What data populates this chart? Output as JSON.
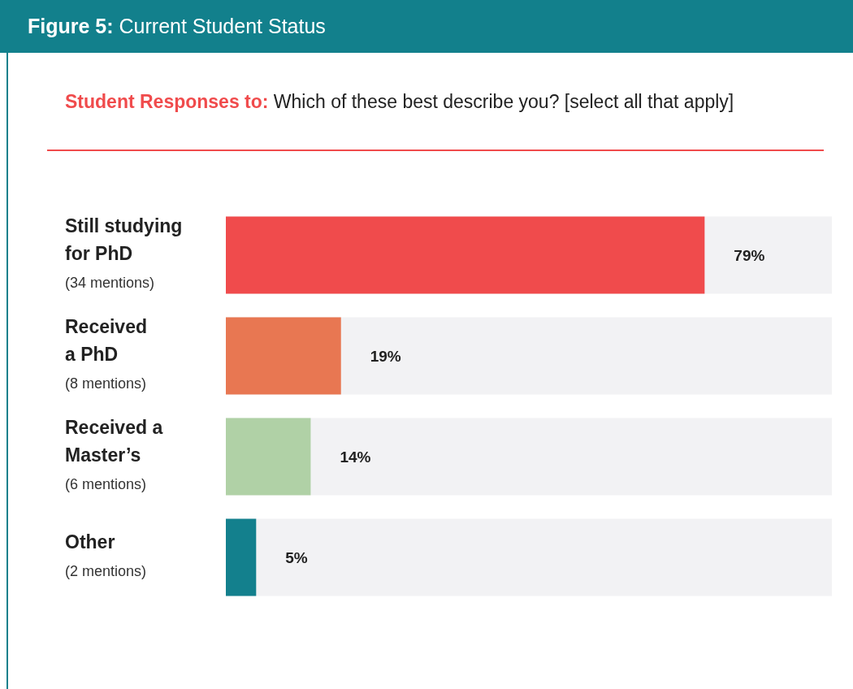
{
  "chart_data": {
    "type": "bar",
    "orientation": "horizontal",
    "title": "Figure 5: Current Student Status",
    "subtitle": "Student Responses to: Which of these best describe you? [select all that apply]",
    "categories": [
      "Still studying\nfor PhD\n(34 mentions)",
      "Received\na PhD\n(8 mentions)",
      "Received a\nMaster’s\n(6 mentions)",
      "Other\n(2 mentions)"
    ],
    "values": [
      79,
      19,
      14,
      5
    ],
    "colors": [
      "#f04b4c",
      "#e87752",
      "#b0d1a6",
      "#13808d"
    ],
    "value_labels": [
      "79%",
      "19%",
      "14%",
      "5%"
    ],
    "xlim": [
      0,
      100
    ]
  }
}
